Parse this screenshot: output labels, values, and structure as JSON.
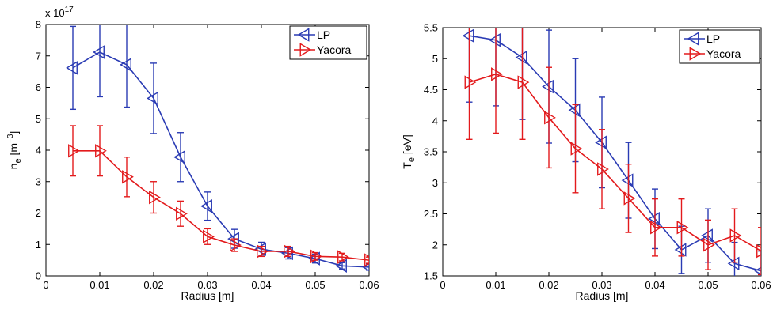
{
  "chart_data": [
    {
      "type": "line",
      "xlabel": "Radius [m]",
      "ylabel_main": "n",
      "ylabel_sub": "e",
      "ylabel_unit_pre": " [m",
      "ylabel_unit_sup": "−3",
      "ylabel_unit_post": "]",
      "multiplier_text": "x 10",
      "multiplier_exp": "17",
      "xlim": [
        0,
        0.06
      ],
      "ylim": [
        0,
        8
      ],
      "xticks": [
        "0",
        "0.01",
        "0.02",
        "0.03",
        "0.04",
        "0.05",
        "0.06"
      ],
      "yticks": [
        "0",
        "1",
        "2",
        "3",
        "4",
        "5",
        "6",
        "7",
        "8"
      ],
      "grid": false,
      "legend_position": "top-right",
      "series": [
        {
          "name": "LP",
          "color": "#2a3bb4",
          "marker": "triangle-left",
          "x": [
            0.005,
            0.01,
            0.015,
            0.02,
            0.025,
            0.03,
            0.035,
            0.04,
            0.045,
            0.05,
            0.055,
            0.06
          ],
          "y": [
            6.62,
            7.12,
            6.72,
            5.65,
            3.78,
            2.22,
            1.18,
            0.85,
            0.72,
            0.55,
            0.32,
            0.28
          ],
          "err": [
            1.32,
            1.42,
            1.35,
            1.12,
            0.78,
            0.45,
            0.3,
            0.22,
            0.18,
            0.14,
            0.1,
            0.1
          ]
        },
        {
          "name": "Yacora",
          "color": "#e31a1c",
          "marker": "triangle-right",
          "x": [
            0.005,
            0.01,
            0.015,
            0.02,
            0.025,
            0.03,
            0.035,
            0.04,
            0.045,
            0.05,
            0.055,
            0.06
          ],
          "y": [
            3.98,
            3.98,
            3.15,
            2.5,
            1.98,
            1.25,
            0.98,
            0.78,
            0.78,
            0.62,
            0.6,
            0.5
          ],
          "err": [
            0.8,
            0.8,
            0.63,
            0.5,
            0.4,
            0.25,
            0.2,
            0.16,
            0.16,
            0.12,
            0.12,
            0.1
          ]
        }
      ]
    },
    {
      "type": "line",
      "xlabel": "Radius [m]",
      "ylabel_main": "T",
      "ylabel_sub": "e",
      "ylabel_unit_pre": " [eV]",
      "ylabel_unit_sup": "",
      "ylabel_unit_post": "",
      "multiplier_text": "",
      "multiplier_exp": "",
      "xlim": [
        0,
        0.06
      ],
      "ylim": [
        1.5,
        5.5
      ],
      "xticks": [
        "0",
        "0.01",
        "0.02",
        "0.03",
        "0.04",
        "0.05",
        "0.06"
      ],
      "yticks": [
        "1.5",
        "2",
        "2.5",
        "3",
        "3.5",
        "4",
        "4.5",
        "5",
        "5.5"
      ],
      "grid": false,
      "legend_position": "top-right",
      "series": [
        {
          "name": "LP",
          "color": "#2a3bb4",
          "marker": "triangle-left",
          "x": [
            0.005,
            0.01,
            0.015,
            0.02,
            0.025,
            0.03,
            0.035,
            0.04,
            0.045,
            0.05,
            0.055,
            0.06
          ],
          "y": [
            5.37,
            5.3,
            5.02,
            4.55,
            4.17,
            3.65,
            3.04,
            2.42,
            1.92,
            2.15,
            1.7,
            1.58
          ],
          "err": [
            1.07,
            1.06,
            1.0,
            0.91,
            0.83,
            0.73,
            0.61,
            0.48,
            0.38,
            0.43,
            0.34,
            0.32
          ]
        },
        {
          "name": "Yacora",
          "color": "#e31a1c",
          "marker": "triangle-right",
          "x": [
            0.005,
            0.01,
            0.015,
            0.02,
            0.025,
            0.03,
            0.035,
            0.04,
            0.045,
            0.05,
            0.055,
            0.06
          ],
          "y": [
            4.62,
            4.75,
            4.62,
            4.05,
            3.55,
            3.22,
            2.75,
            2.28,
            2.28,
            2.0,
            2.15,
            1.9
          ],
          "err": [
            0.92,
            0.95,
            0.92,
            0.81,
            0.71,
            0.64,
            0.55,
            0.46,
            0.46,
            0.4,
            0.43,
            0.38
          ]
        }
      ]
    }
  ]
}
